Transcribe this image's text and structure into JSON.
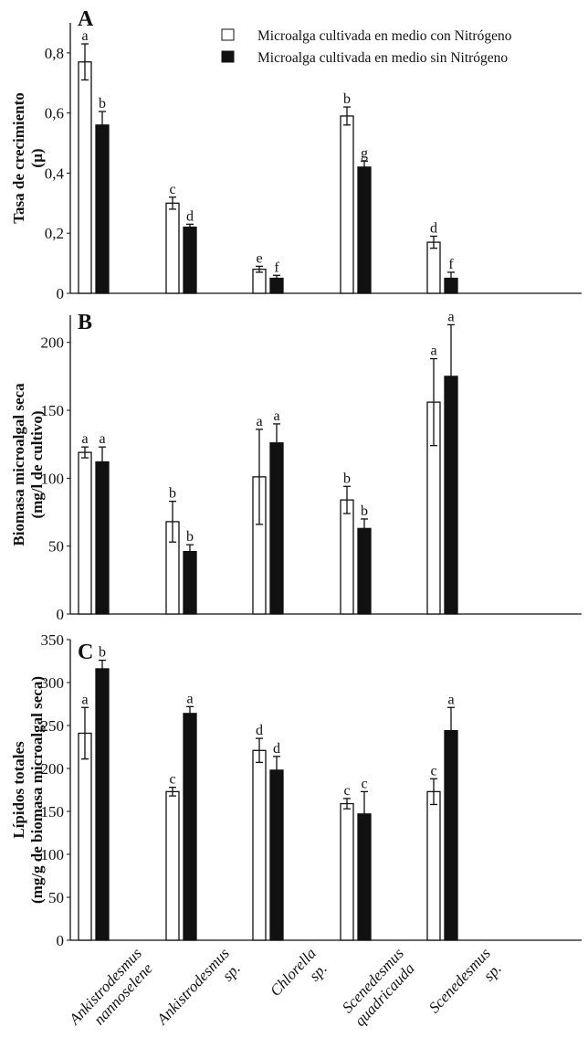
{
  "chart_data": [
    {
      "panel": "A",
      "type": "bar",
      "ylabel_line1": "Tasa de crecimiento",
      "ylabel_line2": "(µ)",
      "ylim": [
        0,
        0.9
      ],
      "yticks": [
        0,
        0.2,
        0.4,
        0.6,
        0.8
      ],
      "ytick_labels": [
        "0",
        "0,2",
        "0,4",
        "0,6",
        "0,8"
      ],
      "categories": [
        "Ankistrodesmus nannoselene",
        "Ankistrodesmus sp.",
        "Chlorella sp.",
        "Scenedesmus quadricauda",
        "Scenedesmus sp."
      ],
      "series": [
        {
          "name": "Microalga cultivada en medio con Nitrógeno",
          "color": "#ffffff",
          "values": [
            0.77,
            0.3,
            0.08,
            0.59,
            0.17
          ],
          "errors": [
            0.06,
            0.02,
            0.01,
            0.03,
            0.02
          ],
          "letters": [
            "a",
            "c",
            "e",
            "b",
            "d"
          ]
        },
        {
          "name": "Microalga cultivada en medio sin Nitrógeno",
          "color": "#111111",
          "values": [
            0.56,
            0.22,
            0.05,
            0.42,
            0.05
          ],
          "errors": [
            0.045,
            0.01,
            0.01,
            0.02,
            0.02
          ],
          "letters": [
            "b",
            "d",
            "f",
            "g",
            "f"
          ]
        }
      ],
      "legend": "top-right"
    },
    {
      "panel": "B",
      "type": "bar",
      "ylabel_line1": "Biomasa microalgal seca",
      "ylabel_line2": "(mg/l de cultivo)",
      "ylim": [
        0,
        220
      ],
      "yticks": [
        0,
        50,
        100,
        150,
        200
      ],
      "ytick_labels": [
        "0",
        "50",
        "100",
        "150",
        "200"
      ],
      "series": [
        {
          "name": "Microalga cultivada en medio con Nitrógeno",
          "color": "#ffffff",
          "values": [
            119,
            68,
            101,
            84,
            156
          ],
          "errors": [
            4,
            15,
            35,
            10,
            32
          ],
          "letters": [
            "a",
            "b",
            "a",
            "b",
            "a"
          ]
        },
        {
          "name": "Microalga cultivada en medio sin Nitrógeno",
          "color": "#111111",
          "values": [
            112,
            46,
            126,
            63,
            175
          ],
          "errors": [
            11,
            5,
            14,
            7,
            38
          ],
          "letters": [
            "a",
            "b",
            "a",
            "b",
            "a"
          ]
        }
      ]
    },
    {
      "panel": "C",
      "type": "bar",
      "ylabel_line1": "Lípidos totales",
      "ylabel_line2": "(mg/g de biomasa microalgal seca)",
      "ylim": [
        0,
        350
      ],
      "yticks": [
        0,
        50,
        100,
        150,
        200,
        250,
        300,
        350
      ],
      "ytick_labels": [
        "0",
        "50",
        "100",
        "150",
        "200",
        "250",
        "300",
        "350"
      ],
      "series": [
        {
          "name": "Microalga cultivada en medio con Nitrógeno",
          "color": "#ffffff",
          "values": [
            241,
            173,
            221,
            159,
            173
          ],
          "errors": [
            30,
            5,
            14,
            6,
            15
          ],
          "letters": [
            "a",
            "c",
            "d",
            "c",
            "c"
          ]
        },
        {
          "name": "Microalga cultivada en medio sin Nitrógeno",
          "color": "#111111",
          "values": [
            316,
            264,
            198,
            147,
            244
          ],
          "errors": [
            10,
            8,
            16,
            26,
            27
          ],
          "letters": [
            "b",
            "a",
            "d",
            "c",
            "a"
          ]
        }
      ]
    }
  ],
  "x_labels": [
    [
      "Ankistrodesmus",
      "nannoselene"
    ],
    [
      "Ankistrodesmus",
      "sp."
    ],
    [
      "Chlorella",
      "sp."
    ],
    [
      "Scenedesmus",
      "quadricauda"
    ],
    [
      "Scenedesmus",
      "sp."
    ]
  ],
  "legend": {
    "items": [
      {
        "label": "Microalga cultivada en medio con Nitrógeno",
        "color": "#ffffff"
      },
      {
        "label": "Microalga cultivada en medio sin Nitrógeno",
        "color": "#111111"
      }
    ]
  }
}
